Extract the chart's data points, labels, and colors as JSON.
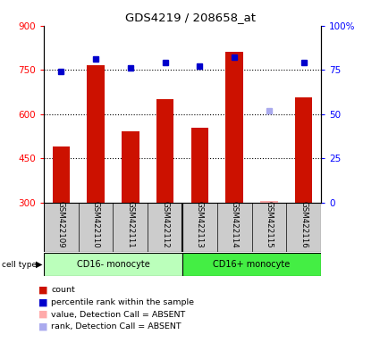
{
  "title": "GDS4219 / 208658_at",
  "samples": [
    "GSM422109",
    "GSM422110",
    "GSM422111",
    "GSM422112",
    "GSM422113",
    "GSM422114",
    "GSM422115",
    "GSM422116"
  ],
  "counts": [
    490,
    765,
    540,
    650,
    555,
    810,
    null,
    658
  ],
  "counts_absent": [
    null,
    null,
    null,
    null,
    null,
    null,
    305,
    null
  ],
  "percentile_ranks": [
    74,
    81,
    76,
    79,
    77,
    82,
    null,
    79
  ],
  "percentile_ranks_absent": [
    null,
    null,
    null,
    null,
    null,
    null,
    52,
    null
  ],
  "absent_flags": [
    false,
    false,
    false,
    false,
    false,
    false,
    true,
    false
  ],
  "ylim_left": [
    300,
    900
  ],
  "ylim_right": [
    0,
    100
  ],
  "yticks_left": [
    300,
    450,
    600,
    750,
    900
  ],
  "yticks_right": [
    0,
    25,
    50,
    75,
    100
  ],
  "ytick_labels_right": [
    "0",
    "25",
    "50",
    "75",
    "100%"
  ],
  "bar_color": "#cc1100",
  "bar_color_absent": "#ffaaaa",
  "dot_color": "#0000cc",
  "dot_color_absent": "#aaaaee",
  "dot_size": 5,
  "bar_width": 0.5,
  "bg_plot": "#ffffff",
  "bg_sample_labels": "#cccccc",
  "cell_type_1_color": "#bbffbb",
  "cell_type_2_color": "#44ee44",
  "legend_items": [
    {
      "label": "count",
      "color": "#cc1100"
    },
    {
      "label": "percentile rank within the sample",
      "color": "#0000cc"
    },
    {
      "label": "value, Detection Call = ABSENT",
      "color": "#ffaaaa"
    },
    {
      "label": "rank, Detection Call = ABSENT",
      "color": "#aaaaee"
    }
  ]
}
